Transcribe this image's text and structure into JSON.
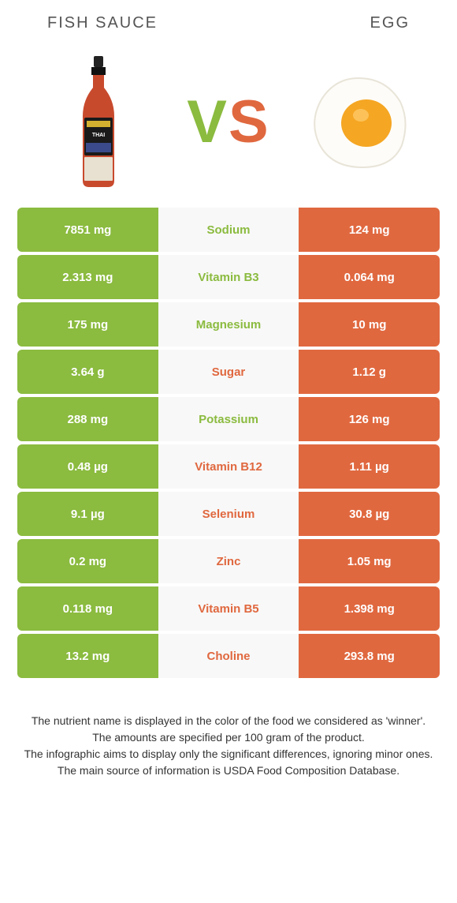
{
  "header": {
    "left": "Fish sauce",
    "right": "Egg"
  },
  "vs": {
    "v": "V",
    "s": "S"
  },
  "colors": {
    "green": "#8bbb3f",
    "orange": "#e0683f",
    "mid_bg": "#f8f8f8",
    "white": "#ffffff"
  },
  "rows": [
    {
      "left": "7851 mg",
      "mid": "Sodium",
      "right": "124 mg",
      "winner": "green"
    },
    {
      "left": "2.313 mg",
      "mid": "Vitamin B3",
      "right": "0.064 mg",
      "winner": "green"
    },
    {
      "left": "175 mg",
      "mid": "Magnesium",
      "right": "10 mg",
      "winner": "green"
    },
    {
      "left": "3.64 g",
      "mid": "Sugar",
      "right": "1.12 g",
      "winner": "orange"
    },
    {
      "left": "288 mg",
      "mid": "Potassium",
      "right": "126 mg",
      "winner": "green"
    },
    {
      "left": "0.48 µg",
      "mid": "Vitamin B12",
      "right": "1.11 µg",
      "winner": "orange"
    },
    {
      "left": "9.1 µg",
      "mid": "Selenium",
      "right": "30.8 µg",
      "winner": "orange"
    },
    {
      "left": "0.2 mg",
      "mid": "Zinc",
      "right": "1.05 mg",
      "winner": "orange"
    },
    {
      "left": "0.118 mg",
      "mid": "Vitamin B5",
      "right": "1.398 mg",
      "winner": "orange"
    },
    {
      "left": "13.2 mg",
      "mid": "Choline",
      "right": "293.8 mg",
      "winner": "orange"
    }
  ],
  "footer": {
    "line1": "The nutrient name is displayed in the color of the food we considered as 'winner'.",
    "line2": "The amounts are specified per 100 gram of the product.",
    "line3": "The infographic aims to display only the significant differences, ignoring minor ones.",
    "line4": "The main source of information is USDA Food Composition Database."
  }
}
